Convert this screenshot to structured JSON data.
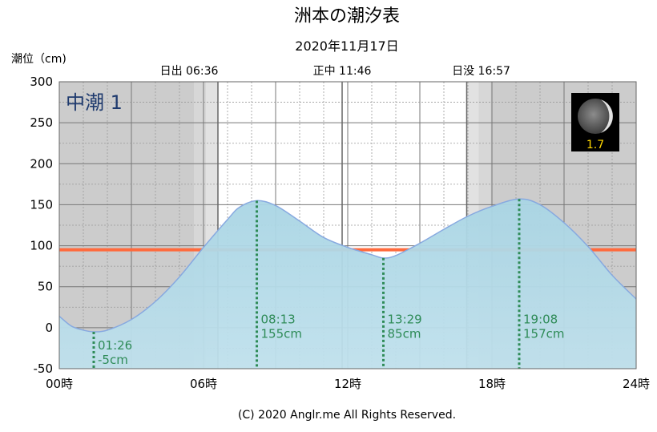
{
  "chart_data": {
    "type": "area",
    "title": "洲本の潮汐表",
    "subtitle": "2020年11月17日",
    "ylabel": "潮位（cm)",
    "ylim": [
      -50,
      300
    ],
    "yticks": [
      "300",
      "250",
      "200",
      "150",
      "100",
      "50",
      "0",
      "-50"
    ],
    "yticks_values": [
      300,
      250,
      200,
      150,
      100,
      50,
      0,
      -50
    ],
    "xlim": [
      0,
      24
    ],
    "xticks": [
      "00時",
      "06時",
      "12時",
      "18時",
      "24時"
    ],
    "xticks_values": [
      0,
      6,
      12,
      18,
      24
    ],
    "grid": true,
    "sun": {
      "sunrise_label": "日出 06:36",
      "noon_label": "正中 11:46",
      "sunset_label": "日没 16:57",
      "sunrise_hour": 6.6,
      "noon_hour": 11.767,
      "sunset_hour": 16.95
    },
    "tide_name": "中潮 1",
    "moon_age": "1.7",
    "mean_level": 95,
    "series": [
      {
        "x": [
          0,
          0.5,
          1.0,
          1.433,
          2.0,
          3.0,
          4.0,
          5.0,
          6.0,
          7.0,
          7.5,
          8.217,
          9.0,
          10.0,
          11.0,
          12.0,
          13.0,
          13.483,
          14.0,
          15.0,
          16.0,
          17.0,
          18.0,
          19.133,
          20.0,
          21.0,
          22.0,
          23.0,
          24.0
        ],
        "y": [
          14,
          2,
          -3,
          -5,
          -3,
          10,
          32,
          62,
          98,
          132,
          147,
          155,
          149,
          130,
          110,
          98,
          89,
          85,
          88,
          103,
          120,
          136,
          148,
          157,
          150,
          128,
          99,
          64,
          35
        ]
      }
    ],
    "extremes": [
      {
        "time": "01:26",
        "level": "-5cm",
        "hour": 1.433,
        "value": -5
      },
      {
        "time": "08:13",
        "level": "155cm",
        "hour": 8.217,
        "value": 155
      },
      {
        "time": "13:29",
        "level": "85cm",
        "hour": 13.483,
        "value": 85
      },
      {
        "time": "19:08",
        "level": "157cm",
        "hour": 19.133,
        "value": 157
      }
    ],
    "colors": {
      "night": "#cccccc",
      "twilight": "#e2e2e2",
      "day": "#ffffff",
      "tide_fill": "#add8e6",
      "tide_line": "#87a9e0",
      "mean_line": "#ff6a3d",
      "extreme_marker": "#2e8b57",
      "tide_name": "#1e3a6e",
      "moon_age": "#ffd700"
    }
  },
  "footer": "(C) 2020 Anglr.me All Rights Reserved."
}
